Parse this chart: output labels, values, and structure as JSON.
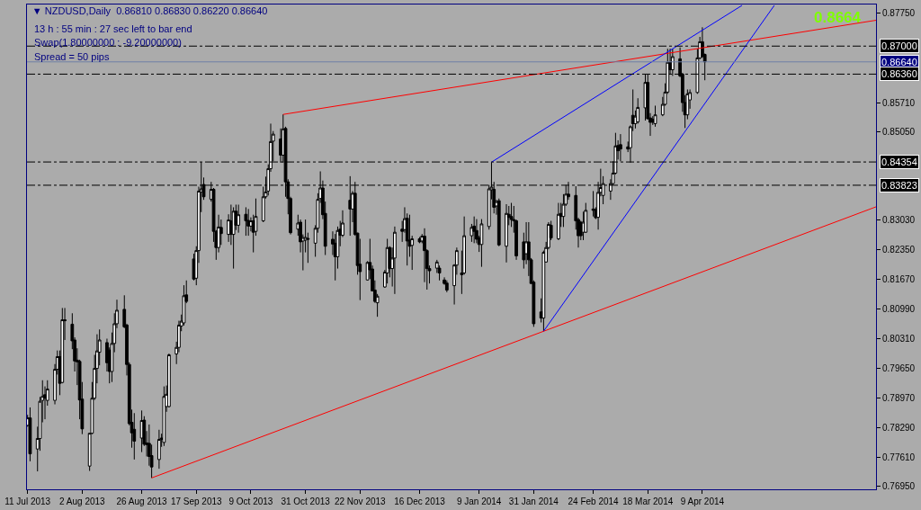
{
  "chart_data": {
    "type": "candlestick",
    "title": "▼ NZDUSD,Daily  0.86810 0.86830 0.86220 0.86640",
    "annotations": [
      "13 h : 55 min : 27 sec left to bar end",
      "Swap(1.80000000 : -9.20000000)",
      "Spread = 50 pips",
      "0.8664"
    ],
    "x": [
      "2013-07-11",
      "2013-07-12",
      "2013-07-15",
      "2013-07-16",
      "2013-07-17",
      "2013-07-18",
      "2013-07-19",
      "2013-07-22",
      "2013-07-23",
      "2013-07-24",
      "2013-07-25",
      "2013-07-26",
      "2013-07-29",
      "2013-07-30",
      "2013-07-31",
      "2013-08-01",
      "2013-08-02",
      "2013-08-05",
      "2013-08-06",
      "2013-08-07",
      "2013-08-08",
      "2013-08-09",
      "2013-08-12",
      "2013-08-13",
      "2013-08-14",
      "2013-08-15",
      "2013-08-16",
      "2013-08-19",
      "2013-08-20",
      "2013-08-21",
      "2013-08-22",
      "2013-08-23",
      "2013-08-26",
      "2013-08-27",
      "2013-08-28",
      "2013-08-29",
      "2013-08-30",
      "2013-09-02",
      "2013-09-03",
      "2013-09-04",
      "2013-09-05",
      "2013-09-06",
      "2013-09-09",
      "2013-09-10",
      "2013-09-11",
      "2013-09-12",
      "2013-09-13",
      "2013-09-16",
      "2013-09-17",
      "2013-09-18",
      "2013-09-19",
      "2013-09-20",
      "2013-09-23",
      "2013-09-24",
      "2013-09-25",
      "2013-09-26",
      "2013-09-27",
      "2013-09-30",
      "2013-10-01",
      "2013-10-02",
      "2013-10-03",
      "2013-10-04",
      "2013-10-07",
      "2013-10-08",
      "2013-10-09",
      "2013-10-10",
      "2013-10-11",
      "2013-10-14",
      "2013-10-15",
      "2013-10-16",
      "2013-10-17",
      "2013-10-18",
      "2013-10-21",
      "2013-10-22",
      "2013-10-23",
      "2013-10-24",
      "2013-10-25",
      "2013-10-28",
      "2013-10-29",
      "2013-10-30",
      "2013-10-31",
      "2013-11-01",
      "2013-11-04",
      "2013-11-05",
      "2013-11-06",
      "2013-11-07",
      "2013-11-08",
      "2013-11-11",
      "2013-11-12",
      "2013-11-13",
      "2013-11-14",
      "2013-11-15",
      "2013-11-18",
      "2013-11-19",
      "2013-11-20",
      "2013-11-21",
      "2013-11-22",
      "2013-11-25",
      "2013-11-26",
      "2013-11-27",
      "2013-11-28",
      "2013-11-29",
      "2013-12-02",
      "2013-12-03",
      "2013-12-04",
      "2013-12-05",
      "2013-12-06",
      "2013-12-09",
      "2013-12-10",
      "2013-12-11",
      "2013-12-12",
      "2013-12-13",
      "2013-12-16",
      "2013-12-17",
      "2013-12-18",
      "2013-12-19",
      "2013-12-20",
      "2013-12-23",
      "2013-12-24",
      "2013-12-26",
      "2013-12-27",
      "2013-12-30",
      "2013-12-31",
      "2014-01-02",
      "2014-01-03",
      "2014-01-06",
      "2014-01-07",
      "2014-01-08",
      "2014-01-09",
      "2014-01-10",
      "2014-01-13",
      "2014-01-14",
      "2014-01-15",
      "2014-01-16",
      "2014-01-17",
      "2014-01-20",
      "2014-01-21",
      "2014-01-22",
      "2014-01-23",
      "2014-01-24",
      "2014-01-27",
      "2014-01-28",
      "2014-01-29",
      "2014-01-30",
      "2014-01-31",
      "2014-02-03",
      "2014-02-04",
      "2014-02-05",
      "2014-02-06",
      "2014-02-07",
      "2014-02-10",
      "2014-02-11",
      "2014-02-12",
      "2014-02-13",
      "2014-02-14",
      "2014-02-17",
      "2014-02-18",
      "2014-02-19",
      "2014-02-20",
      "2014-02-21",
      "2014-02-24",
      "2014-02-25",
      "2014-02-26",
      "2014-02-27",
      "2014-02-28",
      "2014-03-03",
      "2014-03-04",
      "2014-03-05",
      "2014-03-06",
      "2014-03-07",
      "2014-03-10",
      "2014-03-11",
      "2014-03-12",
      "2014-03-13",
      "2014-03-14",
      "2014-03-17",
      "2014-03-18",
      "2014-03-19",
      "2014-03-20",
      "2014-03-21",
      "2014-03-24",
      "2014-03-25",
      "2014-03-26",
      "2014-03-27",
      "2014-03-28",
      "2014-03-31",
      "2014-04-01",
      "2014-04-02",
      "2014-04-03",
      "2014-04-04",
      "2014-04-07",
      "2014-04-08",
      "2014-04-09",
      "2014-04-10"
    ],
    "ohlc": [
      [
        0.7834,
        0.7858,
        0.7831,
        0.7851
      ],
      [
        0.7851,
        0.7875,
        0.7752,
        0.7769
      ],
      [
        0.778,
        0.7831,
        0.7729,
        0.7804
      ],
      [
        0.7804,
        0.7899,
        0.7776,
        0.7889
      ],
      [
        0.7891,
        0.7937,
        0.7841,
        0.79
      ],
      [
        0.7904,
        0.7923,
        0.7848,
        0.7896
      ],
      [
        0.7891,
        0.7937,
        0.7879,
        0.7917
      ],
      [
        0.7891,
        0.7974,
        0.7882,
        0.7962
      ],
      [
        0.7962,
        0.8005,
        0.795,
        0.7991
      ],
      [
        0.7991,
        0.8005,
        0.7903,
        0.793
      ],
      [
        0.7932,
        0.8102,
        0.793,
        0.8075
      ],
      [
        0.8075,
        0.8102,
        0.8029,
        0.8073
      ],
      [
        0.8065,
        0.809,
        0.8008,
        0.8027
      ],
      [
        0.8029,
        0.8035,
        0.7957,
        0.7981
      ],
      [
        0.7983,
        0.801,
        0.7926,
        0.7979
      ],
      [
        0.798,
        0.7984,
        0.7848,
        0.7892
      ],
      [
        0.7894,
        0.7933,
        0.7814,
        0.7826
      ],
      [
        0.7741,
        0.7816,
        0.773,
        0.7816
      ],
      [
        0.7816,
        0.7933,
        0.7814,
        0.7896
      ],
      [
        0.7896,
        0.7995,
        0.7892,
        0.7964
      ],
      [
        0.7964,
        0.8042,
        0.793,
        0.8004
      ],
      [
        0.8001,
        0.8053,
        0.7971,
        0.8029
      ],
      [
        0.8023,
        0.8032,
        0.7957,
        0.7977
      ],
      [
        0.8006,
        0.8012,
        0.793,
        0.7957
      ],
      [
        0.7957,
        0.8046,
        0.7933,
        0.8021
      ],
      [
        0.8021,
        0.809,
        0.8001,
        0.8066
      ],
      [
        0.8066,
        0.8121,
        0.8056,
        0.8097
      ],
      [
        0.8099,
        0.8131,
        0.8056,
        0.8059
      ],
      [
        0.8063,
        0.8066,
        0.7948,
        0.7973
      ],
      [
        0.7973,
        0.7978,
        0.7834,
        0.7838
      ],
      [
        0.7841,
        0.787,
        0.7783,
        0.7817
      ],
      [
        0.7825,
        0.7862,
        0.7756,
        0.7798
      ],
      [
        0.7805,
        0.7868,
        0.7773,
        0.7845
      ],
      [
        0.7846,
        0.7855,
        0.7787,
        0.7791
      ],
      [
        0.7794,
        0.7821,
        0.7763,
        0.779
      ],
      [
        0.7793,
        0.7836,
        0.7742,
        0.7763
      ],
      [
        0.7765,
        0.779,
        0.7714,
        0.7739
      ],
      [
        0.7756,
        0.7824,
        0.7735,
        0.7802
      ],
      [
        0.7802,
        0.7815,
        0.7785,
        0.7805
      ],
      [
        0.7795,
        0.7923,
        0.7787,
        0.79
      ],
      [
        0.7877,
        0.7925,
        0.7865,
        0.7905
      ],
      [
        0.7877,
        0.7998,
        0.7875,
        0.7995
      ],
      [
        0.7997,
        0.8025,
        0.7974,
        0.8012
      ],
      [
        0.8012,
        0.8073,
        0.8001,
        0.8063
      ],
      [
        0.8061,
        0.8087,
        0.8049,
        0.8072
      ],
      [
        0.8068,
        0.8154,
        0.8062,
        0.813
      ],
      [
        0.8132,
        0.8165,
        0.8113,
        0.8117
      ],
      [
        0.8214,
        0.8226,
        0.8165,
        0.8168
      ],
      [
        0.817,
        0.8243,
        0.8154,
        0.8233
      ],
      [
        0.8233,
        0.8379,
        0.8205,
        0.8369
      ],
      [
        0.8367,
        0.8435,
        0.8321,
        0.8374
      ],
      [
        0.8384,
        0.84,
        0.8349,
        0.8356
      ],
      [
        0.835,
        0.839,
        0.8345,
        0.8373
      ],
      [
        0.8373,
        0.8376,
        0.8253,
        0.8277
      ],
      [
        0.8277,
        0.828,
        0.8212,
        0.824
      ],
      [
        0.824,
        0.8315,
        0.8229,
        0.8287
      ],
      [
        0.8286,
        0.8304,
        0.8246,
        0.8272
      ],
      [
        0.827,
        0.8316,
        0.8253,
        0.8303
      ],
      [
        0.8301,
        0.8338,
        0.8246,
        0.827
      ],
      [
        0.827,
        0.8332,
        0.8192,
        0.8323
      ],
      [
        0.8323,
        0.8338,
        0.828,
        0.8291
      ],
      [
        0.8291,
        0.8338,
        0.8274,
        0.8315
      ],
      [
        0.8316,
        0.8332,
        0.8267,
        0.8301
      ],
      [
        0.8302,
        0.8328,
        0.8267,
        0.8289
      ],
      [
        0.8289,
        0.8309,
        0.8277,
        0.8301
      ],
      [
        0.8301,
        0.8315,
        0.8229,
        0.8275
      ],
      [
        0.8277,
        0.8352,
        0.8267,
        0.8311
      ],
      [
        0.8301,
        0.8379,
        0.8298,
        0.8356
      ],
      [
        0.8356,
        0.8402,
        0.8352,
        0.8367
      ],
      [
        0.8369,
        0.843,
        0.8359,
        0.842
      ],
      [
        0.842,
        0.8523,
        0.8413,
        0.8482
      ],
      [
        0.8483,
        0.8506,
        0.8437,
        0.8499
      ],
      [
        0.8488,
        0.8512,
        0.8434,
        0.8451
      ],
      [
        0.8451,
        0.8544,
        0.8434,
        0.8511
      ],
      [
        0.8512,
        0.8516,
        0.8356,
        0.839
      ],
      [
        0.839,
        0.8396,
        0.8316,
        0.8352
      ],
      [
        0.8352,
        0.8356,
        0.827,
        0.8274
      ],
      [
        0.8282,
        0.8315,
        0.8267,
        0.8296
      ],
      [
        0.8298,
        0.8304,
        0.8229,
        0.8253
      ],
      [
        0.8255,
        0.827,
        0.8188,
        0.8263
      ],
      [
        0.8257,
        0.8304,
        0.8229,
        0.8263
      ],
      [
        0.8261,
        0.8274,
        0.8205,
        0.8259
      ],
      [
        0.825,
        0.8291,
        0.8219,
        0.8284
      ],
      [
        0.8284,
        0.8364,
        0.8274,
        0.835
      ],
      [
        0.8352,
        0.8414,
        0.8342,
        0.8376
      ],
      [
        0.8376,
        0.8393,
        0.8305,
        0.8315
      ],
      [
        0.8318,
        0.8345,
        0.8223,
        0.8243
      ],
      [
        0.8259,
        0.8277,
        0.8223,
        0.8248
      ],
      [
        0.825,
        0.8271,
        0.8165,
        0.8219
      ],
      [
        0.8219,
        0.8288,
        0.8192,
        0.8279
      ],
      [
        0.8282,
        0.8301,
        0.8243,
        0.8268
      ],
      [
        0.8268,
        0.8325,
        0.8264,
        0.8296
      ],
      [
        0.8348,
        0.8403,
        0.8267,
        0.8328
      ],
      [
        0.8328,
        0.8369,
        0.8298,
        0.8364
      ],
      [
        0.8364,
        0.839,
        0.8267,
        0.827
      ],
      [
        0.8273,
        0.8274,
        0.8178,
        0.8199
      ],
      [
        0.8202,
        0.826,
        0.812,
        0.8185
      ],
      [
        0.8166,
        0.8209,
        0.8165,
        0.8206
      ],
      [
        0.8206,
        0.826,
        0.8168,
        0.8189
      ],
      [
        0.8191,
        0.8199,
        0.8141,
        0.8141
      ],
      [
        0.8143,
        0.8165,
        0.8114,
        0.8117
      ],
      [
        0.8114,
        0.8134,
        0.8082,
        0.8129
      ],
      [
        0.815,
        0.8189,
        0.8148,
        0.8184
      ],
      [
        0.8182,
        0.826,
        0.8158,
        0.824
      ],
      [
        0.824,
        0.8243,
        0.8172,
        0.8192
      ],
      [
        0.8192,
        0.824,
        0.8151,
        0.8216
      ],
      [
        0.8216,
        0.8288,
        0.8134,
        0.8275
      ],
      [
        0.8282,
        0.8301,
        0.8253,
        0.8277
      ],
      [
        0.8281,
        0.8332,
        0.8274,
        0.8306
      ],
      [
        0.8307,
        0.8318,
        0.8199,
        0.8255
      ],
      [
        0.8257,
        0.8315,
        0.8219,
        0.8243
      ],
      [
        0.8245,
        0.8267,
        0.8189,
        0.826
      ],
      [
        0.826,
        0.8264,
        0.825,
        0.8253
      ],
      [
        0.8255,
        0.8271,
        0.825,
        0.8266
      ],
      [
        0.8266,
        0.8284,
        0.8161,
        0.8233
      ],
      [
        0.8233,
        0.8236,
        0.8144,
        0.8192
      ],
      [
        0.8192,
        0.8199,
        0.8158,
        0.8187
      ],
      [
        0.8193,
        0.8212,
        0.8182,
        0.8207
      ],
      [
        0.8193,
        0.8199,
        0.8165,
        0.8182
      ],
      [
        0.8166,
        0.8172,
        0.8155,
        0.8158
      ],
      [
        0.8159,
        0.8165,
        0.8138,
        0.8143
      ],
      [
        0.8153,
        0.8202,
        0.811,
        0.82
      ],
      [
        0.82,
        0.824,
        0.8178,
        0.8233
      ],
      [
        0.8182,
        0.8233,
        0.8134,
        0.8178
      ],
      [
        0.8182,
        0.8311,
        0.8178,
        0.8267
      ],
      [
        0.8267,
        0.8294,
        0.8253,
        0.8286
      ],
      [
        0.8289,
        0.8311,
        0.825,
        0.8277
      ],
      [
        0.8279,
        0.8305,
        0.825,
        0.8259
      ],
      [
        0.8262,
        0.8267,
        0.823,
        0.8247
      ],
      [
        0.8247,
        0.8305,
        0.8196,
        0.8294
      ],
      [
        0.8288,
        0.8383,
        0.8281,
        0.8374
      ],
      [
        0.8372,
        0.8435,
        0.835,
        0.8378
      ],
      [
        0.8373,
        0.839,
        0.8318,
        0.8332
      ],
      [
        0.8335,
        0.8349,
        0.8315,
        0.8345
      ],
      [
        0.8347,
        0.8352,
        0.8243,
        0.8246
      ],
      [
        0.8243,
        0.8339,
        0.8206,
        0.8318
      ],
      [
        0.8316,
        0.8335,
        0.8291,
        0.8309
      ],
      [
        0.8311,
        0.8342,
        0.8287,
        0.8304
      ],
      [
        0.8304,
        0.8335,
        0.8274,
        0.8301
      ],
      [
        0.8301,
        0.8304,
        0.8212,
        0.8221
      ],
      [
        0.8253,
        0.8274,
        0.8192,
        0.8212
      ],
      [
        0.8226,
        0.8298,
        0.8202,
        0.8253
      ],
      [
        0.8253,
        0.8298,
        0.8175,
        0.8212
      ],
      [
        0.8212,
        0.8216,
        0.8158,
        0.8158
      ],
      [
        0.8161,
        0.8165,
        0.8059,
        0.8066
      ],
      [
        0.8093,
        0.8124,
        0.8069,
        0.8079
      ],
      [
        0.8079,
        0.8233,
        0.8049,
        0.8229
      ],
      [
        0.8207,
        0.8253,
        0.8206,
        0.824
      ],
      [
        0.824,
        0.8298,
        0.8236,
        0.8293
      ],
      [
        0.8291,
        0.8301,
        0.8257,
        0.8262
      ],
      [
        0.826,
        0.8342,
        0.8257,
        0.8316
      ],
      [
        0.8318,
        0.8342,
        0.8287,
        0.8311
      ],
      [
        0.8311,
        0.8362,
        0.8287,
        0.8339
      ],
      [
        0.8339,
        0.8383,
        0.8335,
        0.8362
      ],
      [
        0.8362,
        0.839,
        0.8349,
        0.8356
      ],
      [
        0.8359,
        0.838,
        0.8281,
        0.8301
      ],
      [
        0.8304,
        0.8308,
        0.824,
        0.8267
      ],
      [
        0.8298,
        0.8301,
        0.8257,
        0.8267
      ],
      [
        0.8275,
        0.8322,
        0.8257,
        0.8298
      ],
      [
        0.8275,
        0.8342,
        0.8274,
        0.8325
      ],
      [
        0.8328,
        0.8369,
        0.8311,
        0.8325
      ],
      [
        0.8327,
        0.8332,
        0.8305,
        0.8308
      ],
      [
        0.8309,
        0.839,
        0.8281,
        0.8366
      ],
      [
        0.8366,
        0.842,
        0.8357,
        0.8377
      ],
      [
        0.8359,
        0.8403,
        0.8339,
        0.8386
      ],
      [
        0.8369,
        0.8396,
        0.8349,
        0.8386
      ],
      [
        0.8386,
        0.8437,
        0.8383,
        0.841
      ],
      [
        0.841,
        0.8502,
        0.8407,
        0.8472
      ],
      [
        0.8473,
        0.8485,
        0.8441,
        0.8461
      ],
      [
        0.8475,
        0.8499,
        0.8437,
        0.8465
      ],
      [
        0.847,
        0.8482,
        0.8458,
        0.8465
      ],
      [
        0.8468,
        0.8519,
        0.8434,
        0.8516
      ],
      [
        0.8542,
        0.8601,
        0.8506,
        0.8523
      ],
      [
        0.8523,
        0.8553,
        0.8512,
        0.854
      ],
      [
        0.8527,
        0.8581,
        0.8523,
        0.856
      ],
      [
        0.8559,
        0.8635,
        0.853,
        0.8617
      ],
      [
        0.8617,
        0.8635,
        0.8533,
        0.8534
      ],
      [
        0.8536,
        0.8547,
        0.8495,
        0.8526
      ],
      [
        0.8533,
        0.854,
        0.852,
        0.8526
      ],
      [
        0.8523,
        0.8564,
        0.8516,
        0.8543
      ],
      [
        0.8543,
        0.8584,
        0.854,
        0.8567
      ],
      [
        0.8567,
        0.8615,
        0.8564,
        0.8595
      ],
      [
        0.8595,
        0.8694,
        0.8591,
        0.8663
      ],
      [
        0.8663,
        0.8694,
        0.8636,
        0.8646
      ],
      [
        0.8646,
        0.8694,
        0.8632,
        0.8676
      ],
      [
        0.8671,
        0.8697,
        0.8629,
        0.8632
      ],
      [
        0.8636,
        0.8639,
        0.855,
        0.8571
      ],
      [
        0.8571,
        0.8588,
        0.8513,
        0.8543
      ],
      [
        0.8543,
        0.8601,
        0.8533,
        0.8591
      ],
      [
        0.8577,
        0.8601,
        0.8557,
        0.8594
      ],
      [
        0.8594,
        0.8694,
        0.8591,
        0.8673
      ],
      [
        0.8673,
        0.8721,
        0.867,
        0.871
      ],
      [
        0.871,
        0.8743,
        0.8673,
        0.8676
      ],
      [
        0.8681,
        0.8683,
        0.8622,
        0.8664
      ]
    ],
    "series": [
      {
        "type": "line",
        "color": "#ff0000",
        "x": [
          "2013-10-22",
          "2014-06-18"
        ],
        "values": [
          0.8544,
          0.8759
        ]
      },
      {
        "type": "line",
        "color": "#ff0000",
        "x": [
          "2013-08-30",
          "2014-06-18"
        ],
        "values": [
          0.7714,
          0.8333
        ]
      },
      {
        "type": "line",
        "color": "#0000ff",
        "x": [
          "2014-01-14",
          "2014-04-25"
        ],
        "values": [
          0.8435,
          0.8793
        ]
      },
      {
        "type": "line",
        "color": "#0000ff",
        "x": [
          "2014-02-04",
          "2014-05-08"
        ],
        "values": [
          0.8049,
          0.8793
        ]
      }
    ],
    "ref_lines": [
      {
        "axis": "y",
        "value": 0.87,
        "label": "0.87000",
        "color": "#000000",
        "line_style": "dashed"
      },
      {
        "axis": "y",
        "value": 0.8664,
        "label": "0.86640",
        "color": "#6f7fa6",
        "line_style": "solid"
      },
      {
        "axis": "y",
        "value": 0.8636,
        "label": "0.86360",
        "color": "#000000",
        "line_style": "dashed"
      },
      {
        "axis": "y",
        "value": 0.84354,
        "label": "0.84354",
        "color": "#000000",
        "line_style": "dashed"
      },
      {
        "axis": "y",
        "value": 0.83823,
        "label": "0.83823",
        "color": "#000000",
        "line_style": "dashed"
      }
    ],
    "xlim": [
      "2013-07-10T18:00",
      "2014-06-18"
    ],
    "ylim": [
      0.7688,
      0.8795
    ],
    "xticks": [
      {
        "value": "2013-07-11",
        "label": "11 Jul 2013"
      },
      {
        "value": "2013-08-02",
        "label": "2 Aug 2013"
      },
      {
        "value": "2013-08-26",
        "label": "26 Aug 2013"
      },
      {
        "value": "2013-09-17",
        "label": "17 Sep 2013"
      },
      {
        "value": "2013-10-09",
        "label": "9 Oct 2013"
      },
      {
        "value": "2013-10-31",
        "label": "31 Oct 2013"
      },
      {
        "value": "2013-11-22",
        "label": "22 Nov 2013"
      },
      {
        "value": "2013-12-16",
        "label": "16 Dec 2013"
      },
      {
        "value": "2014-01-09",
        "label": "9 Jan 2014"
      },
      {
        "value": "2014-01-31",
        "label": "31 Jan 2014"
      },
      {
        "value": "2014-02-24",
        "label": "24 Feb 2014"
      },
      {
        "value": "2014-03-18",
        "label": "18 Mar 2014"
      },
      {
        "value": "2014-04-09",
        "label": "9 Apr 2014"
      }
    ],
    "yticks": [
      {
        "value": 0.8775,
        "label": "0.87750"
      },
      {
        "value": 0.8571,
        "label": "0.85710"
      },
      {
        "value": 0.8505,
        "label": "0.85050"
      },
      {
        "value": 0.8303,
        "label": "0.83030"
      },
      {
        "value": 0.8235,
        "label": "0.82350"
      },
      {
        "value": 0.8167,
        "label": "0.81670"
      },
      {
        "value": 0.8099,
        "label": "0.80990"
      },
      {
        "value": 0.8031,
        "label": "0.80310"
      },
      {
        "value": 0.7965,
        "label": "0.79650"
      },
      {
        "value": 0.7897,
        "label": "0.78970"
      },
      {
        "value": 0.7829,
        "label": "0.78290"
      },
      {
        "value": 0.7761,
        "label": "0.77610"
      },
      {
        "value": 0.7695,
        "label": "0.76950"
      }
    ]
  }
}
